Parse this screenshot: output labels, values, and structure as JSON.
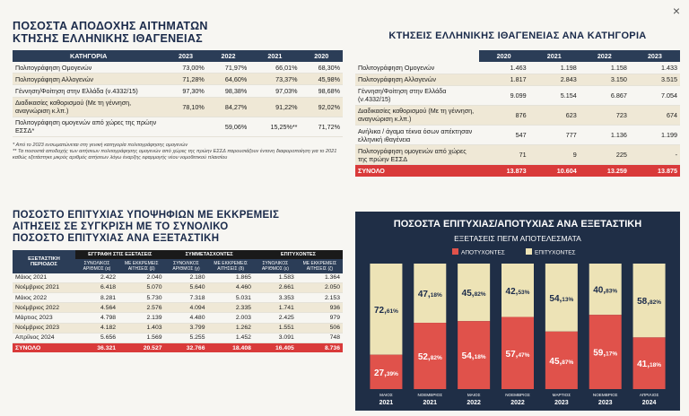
{
  "close_icon": "×",
  "acceptance": {
    "title_line1": "ΠΟΣΟΣΤΑ ΑΠΟΔΟΧΗΣ ΑΙΤΗΜΑΤΩΝ",
    "title_line2": "ΚΤΗΣΗΣ ΕΛΛΗΝΙΚΗΣ ΙΘΑΓΕΝΕΙΑΣ",
    "headers": [
      "ΚΑΤΗΓΟΡΙΑ",
      "2023",
      "2022",
      "2021",
      "2020"
    ],
    "rows": [
      {
        "label": "Πολιτογράφηση Ομογενών",
        "v": [
          "73,00%",
          "71,97%",
          "66,01%",
          "68,30%"
        ]
      },
      {
        "label": "Πολιτογράφηση Αλλογενών",
        "v": [
          "71,28%",
          "64,60%",
          "73,37%",
          "45,98%"
        ]
      },
      {
        "label": "Γέννηση/Φοίτηση στην Ελλάδα (ν.4332/15)",
        "v": [
          "97,30%",
          "98,38%",
          "97,03%",
          "98,68%"
        ]
      },
      {
        "label": "Διαδικασίες καθορισμού (Με τη γέννηση, αναγνώριση κ.λπ.)",
        "v": [
          "78,10%",
          "84,27%",
          "91,22%",
          "92,02%"
        ]
      },
      {
        "label": "Πολιτογράφηση ομογενών από χώρες της πρώην ΕΣΣΔ*",
        "v": [
          "",
          "59,06%",
          "15,25%**",
          "71,72%"
        ]
      }
    ],
    "note1": "* Από το 2023 ενσωματώνεται στη γενική κατηγορία πολιτογράφησης ομογενών",
    "note2": "** Τα ποσοστά αποδοχής των αιτήσεων πολιτογράφησης ομογενών από χώρες της πρώην ΕΣΣΔ παρουσιάζουν έντονη διαφοροποίηση για το 2021 καθώς εξετάστηκε μικρός αριθμός αιτήσεων λόγω έναρξης εφαρμογής νέου νομοθετικού πλαισίου"
  },
  "categories": {
    "title": "ΚΤΗΣΕΙΣ ΕΛΛΗΝΙΚΗΣ ΙΘΑΓΕΝΕΙΑΣ ΑΝΑ ΚΑΤΗΓΟΡΙΑ",
    "headers": [
      "",
      "2020",
      "2021",
      "2022",
      "2023"
    ],
    "rows": [
      {
        "label": "Πολιτογράφηση Ομογενών",
        "v": [
          "1.463",
          "1.198",
          "1.158",
          "1.433"
        ]
      },
      {
        "label": "Πολιτογράφηση Αλλογενών",
        "v": [
          "1.817",
          "2.843",
          "3.150",
          "3.515"
        ]
      },
      {
        "label": "Γέννηση/Φοίτηση στην Ελλάδα (ν.4332/15)",
        "v": [
          "9.099",
          "5.154",
          "6.867",
          "7.054"
        ]
      },
      {
        "label": "Διαδικασίες καθορισμού (Με τη γέννηση, αναγνώριση κ.λπ.)",
        "v": [
          "876",
          "623",
          "723",
          "674"
        ]
      },
      {
        "label": "Ανήλικα / άγαμα τέκνα όσων απέκτησαν ελληνική ιθαγένεια",
        "v": [
          "547",
          "777",
          "1.136",
          "1.199"
        ]
      },
      {
        "label": "Πολιτογράφηση ομογενών από χώρες της πρώην ΕΣΣΔ",
        "v": [
          "71",
          "9",
          "225",
          "-"
        ]
      }
    ],
    "total": {
      "label": "ΣΥΝΟΛΟ",
      "v": [
        "13.873",
        "10.604",
        "13.259",
        "13.875"
      ]
    }
  },
  "success": {
    "title_line1": "ΠΟΣΟΣΤΟ ΕΠΙΤΥΧΙΑΣ ΥΠΟΨΗΦΙΩΝ ΜΕ ΕΚΚΡΕΜΕΙΣ",
    "title_line2": "ΑΙΤΗΣΕΙΣ ΣΕ ΣΥΓΚΡΙΣΗ ΜΕ ΤΟ ΣΥΝΟΛΙΚΟ",
    "title_line3": "ΠΟΣΟΣΤΟ ΕΠΙΤΥΧΙΑΣ ΑΝΑ ΕΞΕΤΑΣΤΙΚΗ",
    "group_headers": [
      "ΕΓΓΡΑΦΗ ΣΤΙΣ ΕΞΕΤΑΣΕΙΣ",
      "ΣΥΜΜΕΤΑΣΧΟΝΤΕΣ",
      "ΕΠΙΤΥΧΟΝΤΕΣ"
    ],
    "period_header": "ΕΞΕΤΑΣΤΙΚΗ ΠΕΡΙΟΔΟΣ",
    "sub_headers": [
      "ΣΥΝΟΛΙΚΟΣ ΑΡΙΘΜΟΣ (α)",
      "ΜΕ ΕΚΚΡΕΜΕΙΣ ΑΙΤΗΣΕΙΣ (β)",
      "ΣΥΝΟΛΙΚΟΣ ΑΡΙΘΜΟΣ (γ)",
      "ΜΕ ΕΚΚΡΕΜΕΙΣ ΑΙΤΗΣΕΙΣ (δ)",
      "ΣΥΝΟΛΙΚΟΣ ΑΡΙΘΜΟΣ (ε)",
      "ΜΕ ΕΚΚΡΕΜΕΙΣ ΑΙΤΗΣΕΙΣ (ζ)"
    ],
    "rows": [
      {
        "label": "Μάιος 2021",
        "v": [
          "2.422",
          "2.040",
          "2.180",
          "1.865",
          "1.583",
          "1.364"
        ]
      },
      {
        "label": "Νοέμβριος 2021",
        "v": [
          "6.418",
          "5.070",
          "5.640",
          "4.460",
          "2.661",
          "2.050"
        ]
      },
      {
        "label": "Μάιος 2022",
        "v": [
          "8.281",
          "5.730",
          "7.318",
          "5.031",
          "3.353",
          "2.153"
        ]
      },
      {
        "label": "Νοέμβριος 2022",
        "v": [
          "4.564",
          "2.576",
          "4.094",
          "2.335",
          "1.741",
          "936"
        ]
      },
      {
        "label": "Μάρτιος 2023",
        "v": [
          "4.798",
          "2.139",
          "4.480",
          "2.003",
          "2.425",
          "979"
        ]
      },
      {
        "label": "Νοέμβριος 2023",
        "v": [
          "4.182",
          "1.403",
          "3.799",
          "1.262",
          "1.551",
          "506"
        ]
      },
      {
        "label": "Απρίλιος 2024",
        "v": [
          "5.656",
          "1.569",
          "5.255",
          "1.452",
          "3.091",
          "748"
        ]
      }
    ],
    "total": {
      "label": "ΣΥΝΟΛΟ",
      "v": [
        "36.321",
        "20.527",
        "32.766",
        "18.408",
        "16.405",
        "8.736"
      ]
    }
  },
  "chart_data": {
    "type": "bar",
    "stacked": true,
    "title": "ΠΟΣΟΣΤΑ ΕΠΙΤΥΧΙΑΣ/ΑΠΟΤΥΧΙΑΣ ΑΝΑ ΕΞΕΤΑΣΤΙΚΗ",
    "subtitle": "ΕΞΕΤΑΣΕΙΣ ΠΕΓΜ ΑΠΟΤΕΛΕΣΜΑΤΑ",
    "categories": [
      {
        "month": "ΜΑΙΟΣ",
        "year": "2021"
      },
      {
        "month": "ΝΟΕΜΒΡΙΟΣ",
        "year": "2021"
      },
      {
        "month": "ΜΑΙΟΣ",
        "year": "2022"
      },
      {
        "month": "ΝΟΕΜΒΡΙΟΣ",
        "year": "2022"
      },
      {
        "month": "ΜΑΡΤΙΟΣ",
        "year": "2023"
      },
      {
        "month": "ΝΟΕΜΒΡΙΟΣ",
        "year": "2023"
      },
      {
        "month": "ΑΠΡΙΛΙΟΣ",
        "year": "2024"
      }
    ],
    "series": [
      {
        "name": "ΑΠΟΤΥΧΟΝΤΕΣ",
        "color": "#e0524b",
        "values": [
          27.39,
          52.82,
          54.18,
          57.47,
          45.87,
          59.17,
          41.18
        ],
        "labels": [
          [
            "27,",
            "39%"
          ],
          [
            "52,",
            "82%"
          ],
          [
            "54,",
            "18%"
          ],
          [
            "57,",
            "47%"
          ],
          [
            "45,",
            "87%"
          ],
          [
            "59,",
            "17%"
          ],
          [
            "41,",
            "18%"
          ]
        ]
      },
      {
        "name": "ΕΠΙΤΥΧΟΝΤΕΣ",
        "color": "#ede3b6",
        "values": [
          72.61,
          47.18,
          45.82,
          42.53,
          54.13,
          40.83,
          58.82
        ],
        "labels": [
          [
            "72,",
            "61%"
          ],
          [
            "47,",
            "18%"
          ],
          [
            "45,",
            "82%"
          ],
          [
            "42,",
            "53%"
          ],
          [
            "54,",
            "13%"
          ],
          [
            "40,",
            "83%"
          ],
          [
            "58,",
            "82%"
          ]
        ]
      }
    ],
    "ylim": [
      0,
      100
    ],
    "legend": "top-center"
  }
}
